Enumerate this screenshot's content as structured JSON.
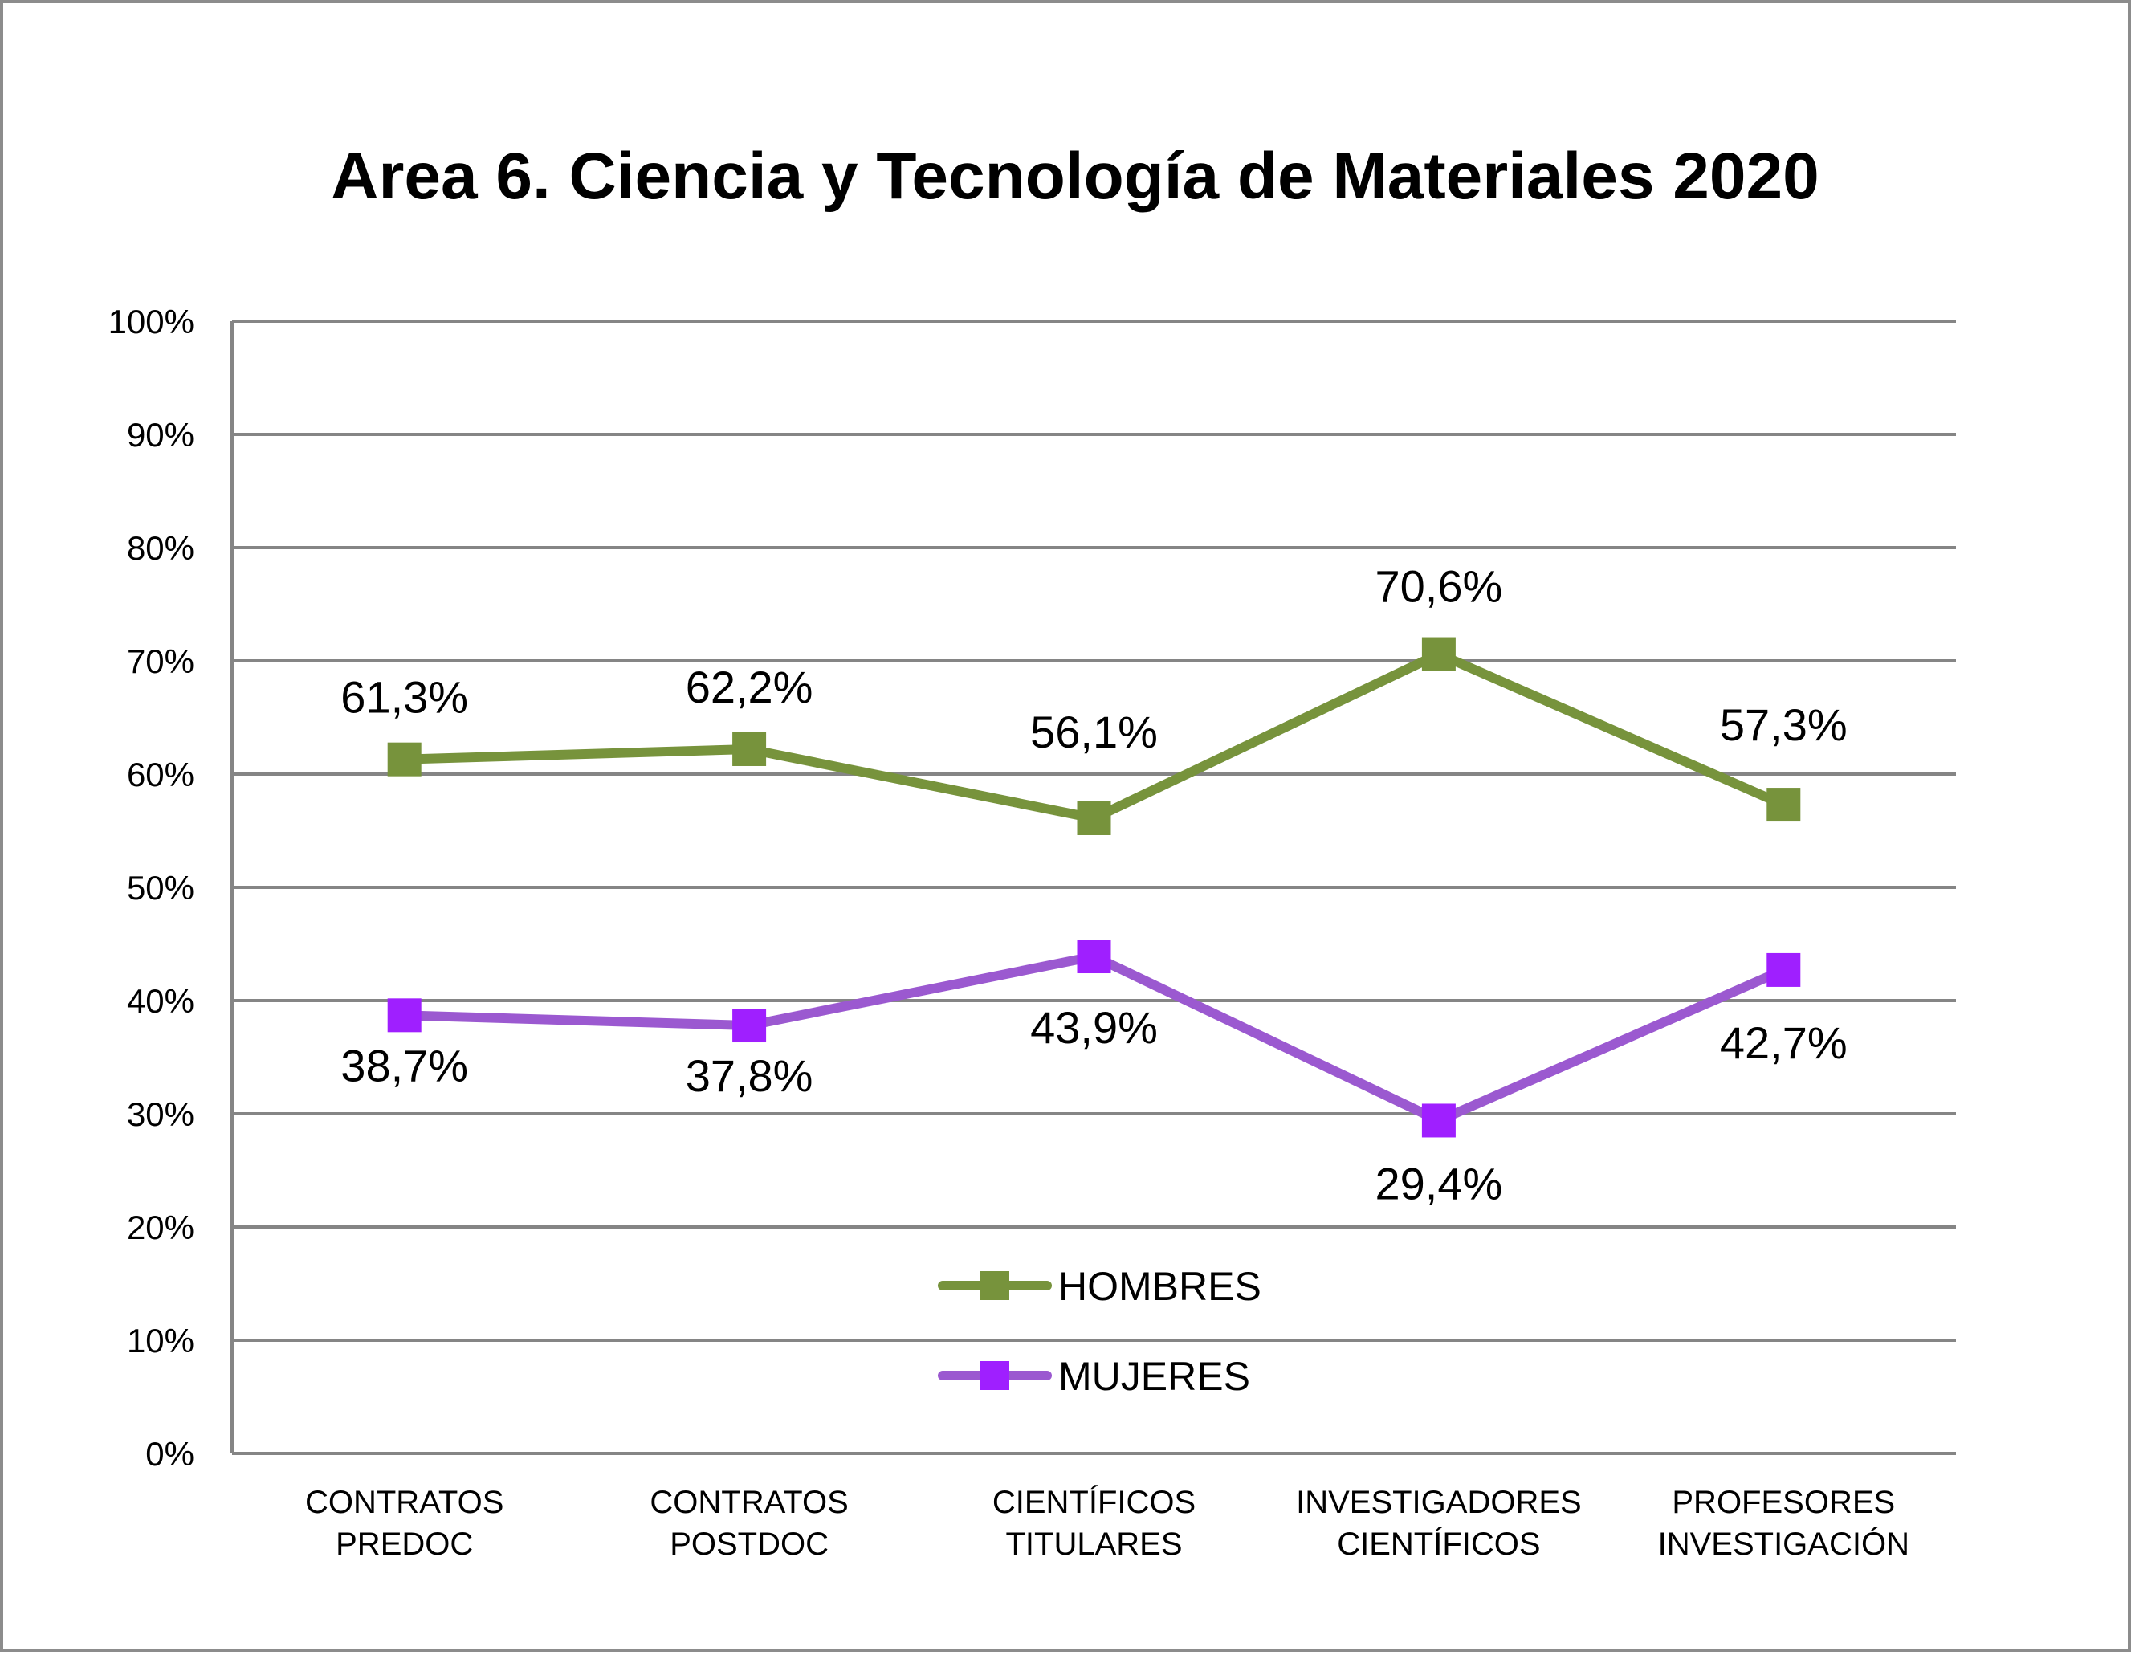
{
  "chart_data": {
    "type": "line",
    "title": "Area 6. Ciencia y Tecnología de Materiales 2020",
    "xlabel": "",
    "ylabel": "",
    "ylim": [
      0,
      100
    ],
    "yticks": [
      "0%",
      "10%",
      "20%",
      "30%",
      "40%",
      "50%",
      "60%",
      "70%",
      "80%",
      "90%",
      "100%"
    ],
    "grid": true,
    "legend_position": "bottom-center",
    "categories": [
      [
        "CONTRATOS",
        "PREDOC"
      ],
      [
        "CONTRATOS",
        "POSTDOC"
      ],
      [
        "CIENTÍFICOS",
        "TITULARES"
      ],
      [
        "INVESTIGADORES",
        "CIENTÍFICOS"
      ],
      [
        "PROFESORES",
        "INVESTIGACIÓN"
      ]
    ],
    "series": [
      {
        "name": "HOMBRES",
        "color": "#77933c",
        "values": [
          61.3,
          62.2,
          56.1,
          70.6,
          57.3
        ],
        "labels": [
          "61,3%",
          "62,2%",
          "56,1%",
          "70,6%",
          "57,3%"
        ]
      },
      {
        "name": "MUJERES",
        "color": "#9b59d0",
        "marker_color": "#9f1fff",
        "values": [
          38.7,
          37.8,
          43.9,
          29.4,
          42.7
        ],
        "labels": [
          "38,7%",
          "37,8%",
          "43,9%",
          "29,4%",
          "42,7%"
        ]
      }
    ]
  }
}
